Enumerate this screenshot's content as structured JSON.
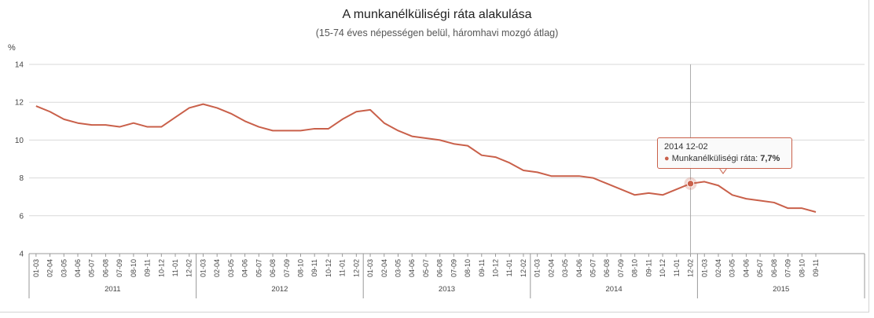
{
  "title": "A munkanélküliségi ráta alakulása",
  "subtitle": "(15-74 éves népességen belül, háromhavi mozgó átlag)",
  "unit_label": "%",
  "colors": {
    "series": "#c9604a",
    "grid": "#d9d9d9",
    "axis": "#999999"
  },
  "tooltip": {
    "date": "2014 12-02",
    "series_label": "Munkanélküliségi ráta:",
    "value": "7,7%",
    "index": 47
  },
  "chart_data": {
    "type": "line",
    "title": "A munkanélküliségi ráta alakulása",
    "subtitle": "(15-74 éves népességen belül, háromhavi mozgó átlag)",
    "ylabel": "%",
    "ylim": [
      4,
      14
    ],
    "yticks": [
      4,
      6,
      8,
      10,
      12,
      14
    ],
    "grid": true,
    "years": [
      "2011",
      "2012",
      "2013",
      "2014",
      "2015"
    ],
    "categories": [
      "01-03",
      "02-04",
      "03-05",
      "04-06",
      "05-07",
      "06-08",
      "07-09",
      "08-10",
      "09-11",
      "10-12",
      "11-01",
      "12-02",
      "01-03",
      "02-04",
      "03-05",
      "04-06",
      "05-07",
      "06-08",
      "07-09",
      "08-10",
      "09-11",
      "10-12",
      "11-01",
      "12-02",
      "01-03",
      "02-04",
      "03-05",
      "04-06",
      "05-07",
      "06-08",
      "07-09",
      "08-10",
      "09-11",
      "10-12",
      "11-01",
      "12-02",
      "01-03",
      "02-04",
      "03-05",
      "04-06",
      "05-07",
      "06-08",
      "07-09",
      "08-10",
      "09-11",
      "10-12",
      "11-01",
      "12-02",
      "01-03",
      "02-04",
      "03-05",
      "04-06",
      "05-07",
      "06-08",
      "07-09",
      "08-10",
      "09-11"
    ],
    "series": [
      {
        "name": "Munkanélküliségi ráta",
        "values": [
          11.8,
          11.5,
          11.1,
          10.9,
          10.8,
          10.8,
          10.7,
          10.9,
          10.7,
          10.7,
          11.2,
          11.7,
          11.9,
          11.7,
          11.4,
          11.0,
          10.7,
          10.5,
          10.5,
          10.5,
          10.6,
          10.6,
          11.1,
          11.5,
          11.6,
          10.9,
          10.5,
          10.2,
          10.1,
          10.0,
          9.8,
          9.7,
          9.2,
          9.1,
          8.8,
          8.4,
          8.3,
          8.1,
          8.1,
          8.1,
          8.0,
          7.7,
          7.4,
          7.1,
          7.2,
          7.1,
          7.4,
          7.7,
          7.8,
          7.6,
          7.1,
          6.9,
          6.8,
          6.7,
          6.4,
          6.4,
          6.2
        ]
      }
    ]
  }
}
